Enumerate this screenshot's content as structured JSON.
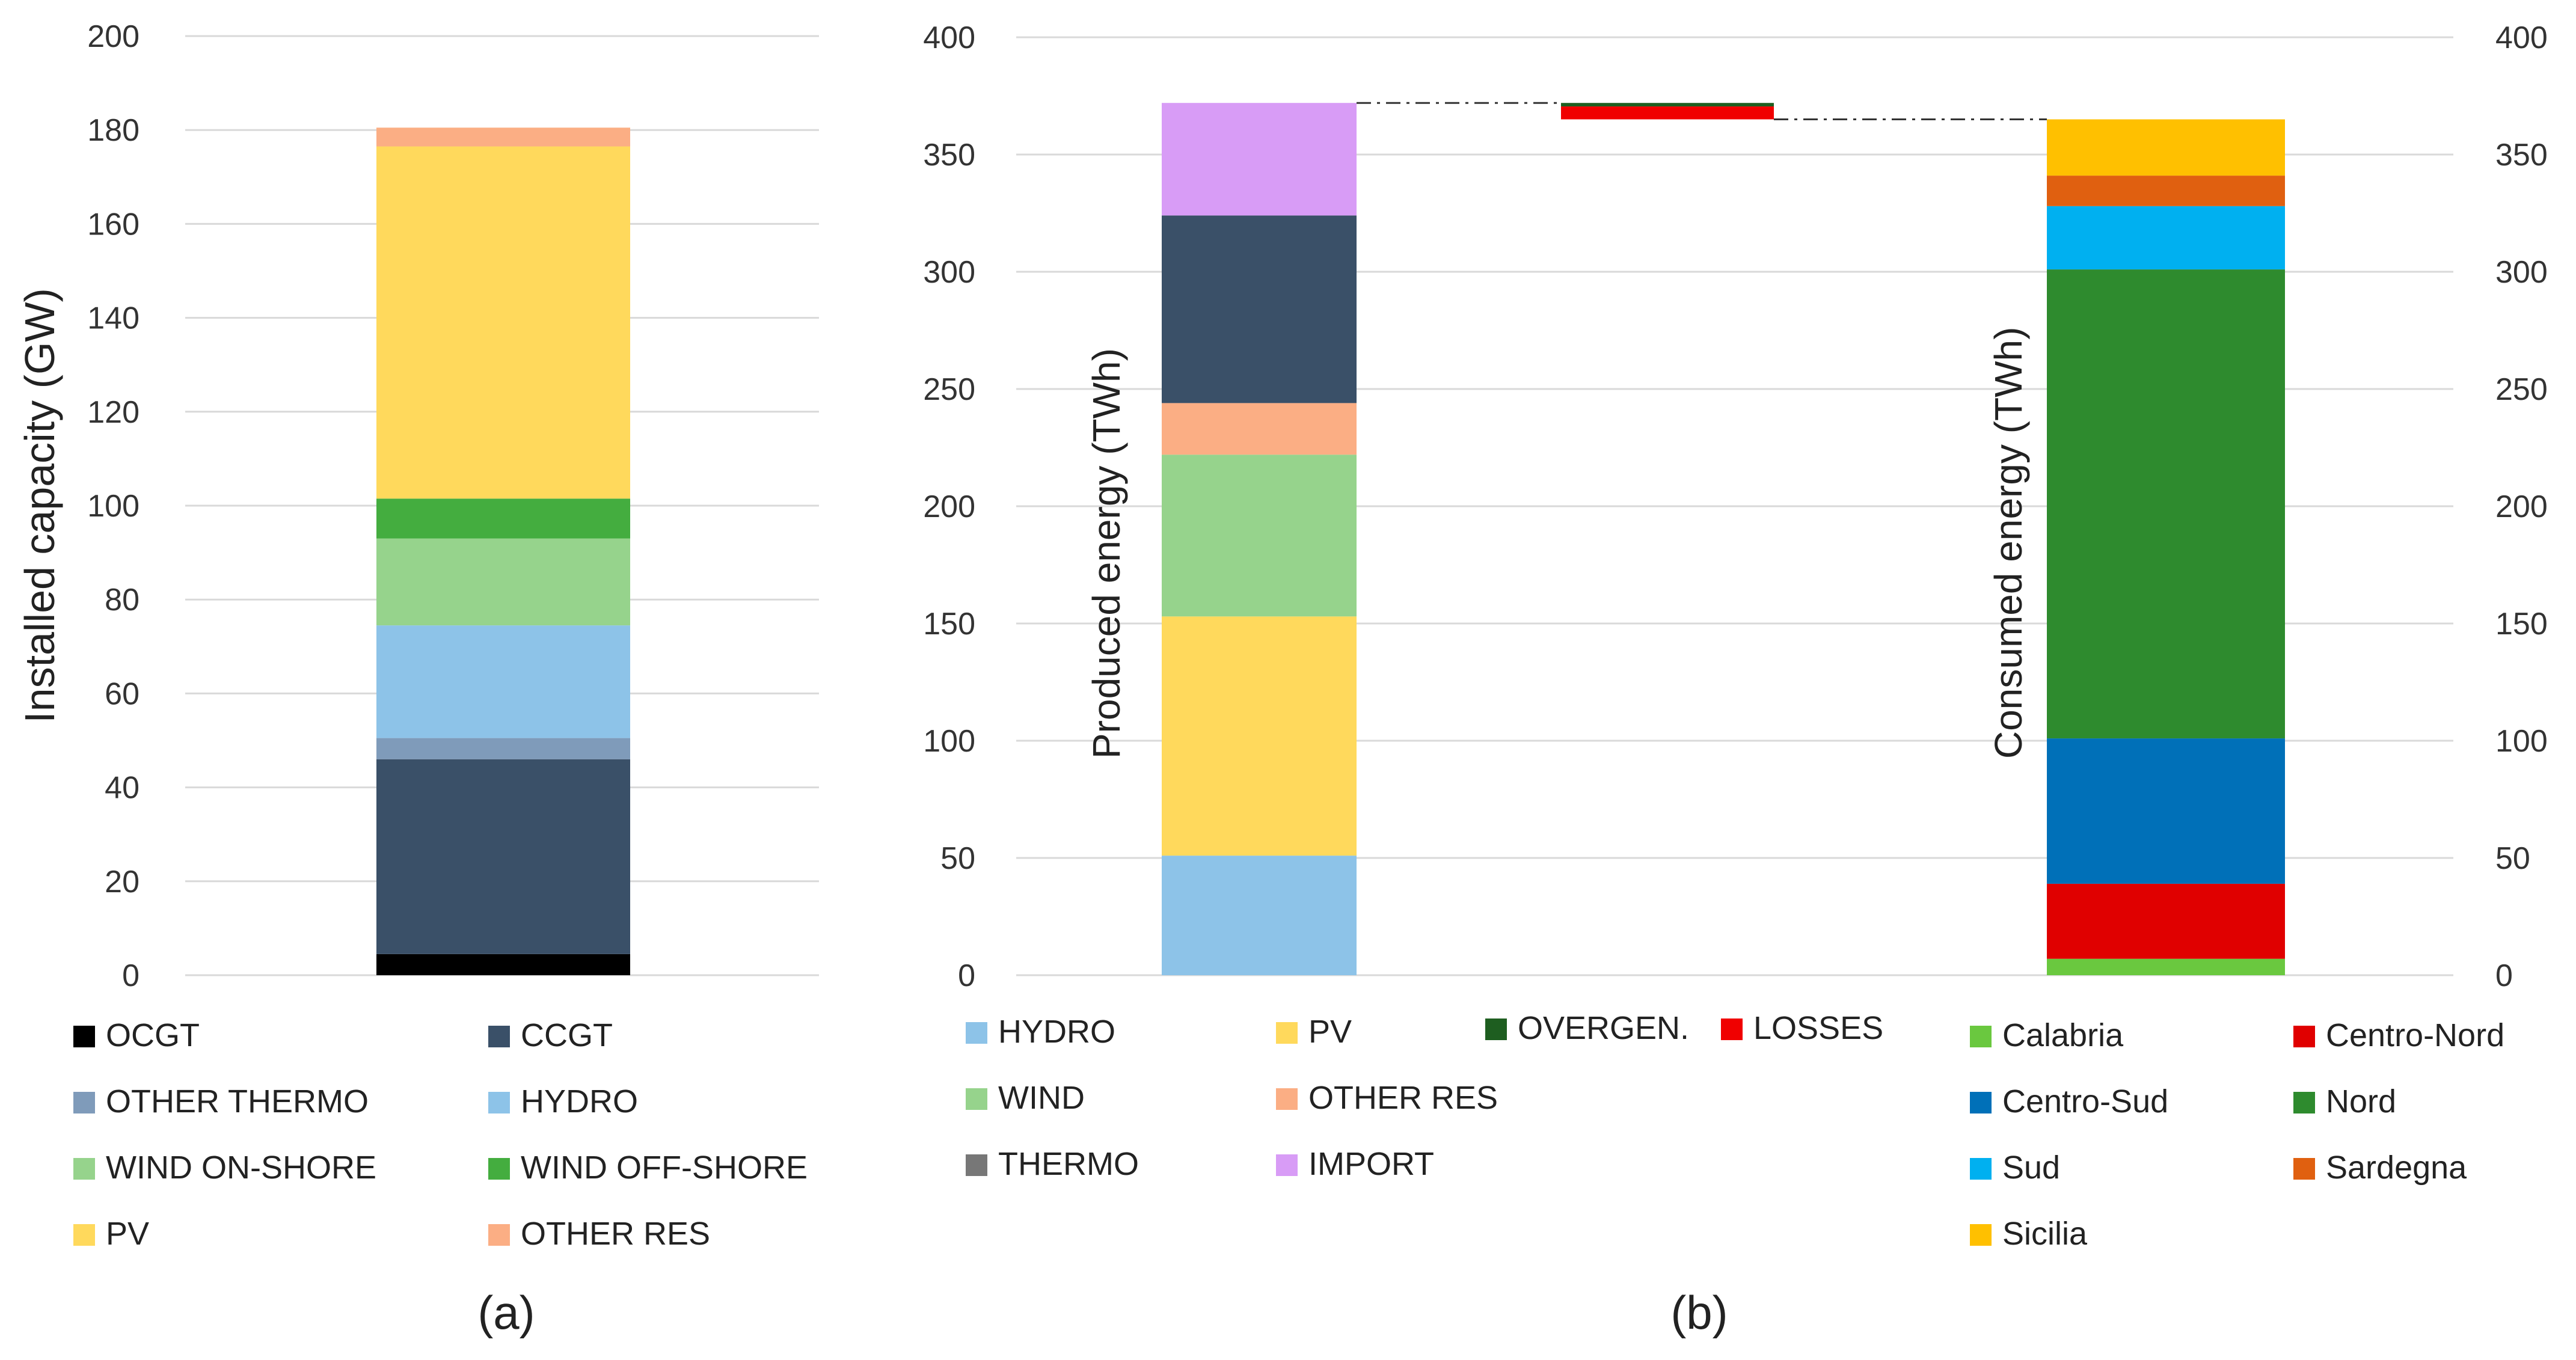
{
  "chart_data": [
    {
      "id": "a",
      "type": "bar",
      "stacked": true,
      "panel_label": "(a)",
      "ylabel": "Installed capacity (GW)",
      "ylim": [
        0,
        200
      ],
      "yticks": [
        0,
        20,
        40,
        60,
        80,
        100,
        120,
        140,
        160,
        180,
        200
      ],
      "grid": true,
      "legend_position": "bottom",
      "series": [
        {
          "name": "OCGT",
          "value": 4.5,
          "color": "#000000"
        },
        {
          "name": "CCGT",
          "value": 41.5,
          "color": "#3a5068"
        },
        {
          "name": "OTHER THERMO",
          "value": 4.5,
          "color": "#7f9bba"
        },
        {
          "name": "HYDRO",
          "value": 24,
          "color": "#8dc3e8"
        },
        {
          "name": "WIND ON-SHORE",
          "value": 18.5,
          "color": "#96d38c"
        },
        {
          "name": "WIND OFF-SHORE",
          "value": 8.5,
          "color": "#44ad3f"
        },
        {
          "name": "PV",
          "value": 75,
          "color": "#ffd95c"
        },
        {
          "name": "OTHER RES",
          "value": 4,
          "color": "#fbae84"
        }
      ]
    },
    {
      "id": "b",
      "type": "bar",
      "stacked": true,
      "panel_label": "(b)",
      "ylim": [
        0,
        400
      ],
      "yticks": [
        0,
        50,
        100,
        150,
        200,
        250,
        300,
        350,
        400
      ],
      "grid": true,
      "legend_position": "bottom",
      "produced": {
        "label": "Produced energy (TWh)",
        "series": [
          {
            "name": "HYDRO",
            "value": 51,
            "color": "#8dc3e8"
          },
          {
            "name": "PV",
            "value": 102,
            "color": "#ffd95c"
          },
          {
            "name": "WIND",
            "value": 69,
            "color": "#96d38c"
          },
          {
            "name": "OTHER RES",
            "value": 22,
            "color": "#fbae84"
          },
          {
            "name": "THERMO",
            "value": 80,
            "color": "#3a5068"
          },
          {
            "name": "IMPORT",
            "value": 48,
            "color": "#d89cf6"
          }
        ]
      },
      "transfer": {
        "overgen": {
          "name": "OVERGEN.",
          "value": 1.5,
          "color": "#1e5e20"
        },
        "losses": {
          "name": "LOSSES",
          "value": 5.5,
          "color": "#f00000"
        }
      },
      "consumed": {
        "label": "Consumed energy (TWh)",
        "series": [
          {
            "name": "Calabria",
            "value": 7,
            "color": "#6ac83f"
          },
          {
            "name": "Centro-Nord",
            "value": 32,
            "color": "#e00000"
          },
          {
            "name": "Centro-Sud",
            "value": 62,
            "color": "#0070b8"
          },
          {
            "name": "Nord",
            "value": 200,
            "color": "#2e8b2e"
          },
          {
            "name": "Sud",
            "value": 27,
            "color": "#00b0f0"
          },
          {
            "name": "Sardegna",
            "value": 13,
            "color": "#e06010"
          },
          {
            "name": "Sicilia",
            "value": 24,
            "color": "#ffc000"
          }
        ]
      },
      "legend_groups": [
        {
          "items": [
            {
              "name": "HYDRO",
              "color": "#8dc3e8"
            },
            {
              "name": "PV",
              "color": "#ffd95c"
            },
            {
              "name": "WIND",
              "color": "#96d38c"
            },
            {
              "name": "OTHER RES",
              "color": "#fbae84"
            },
            {
              "name": "THERMO",
              "color": "#777777"
            },
            {
              "name": "IMPORT",
              "color": "#d89cf6"
            }
          ]
        },
        {
          "items": [
            {
              "name": "OVERGEN.",
              "color": "#1e5e20"
            },
            {
              "name": "LOSSES",
              "color": "#f00000"
            }
          ]
        },
        {
          "items": [
            {
              "name": "Calabria",
              "color": "#6ac83f"
            },
            {
              "name": "Centro-Nord",
              "color": "#e00000"
            },
            {
              "name": "Centro-Sud",
              "color": "#0070b8"
            },
            {
              "name": "Nord",
              "color": "#2e8b2e"
            },
            {
              "name": "Sud",
              "color": "#00b0f0"
            },
            {
              "name": "Sardegna",
              "color": "#e06010"
            },
            {
              "name": "Sicilia",
              "color": "#ffc000"
            }
          ]
        }
      ]
    }
  ]
}
